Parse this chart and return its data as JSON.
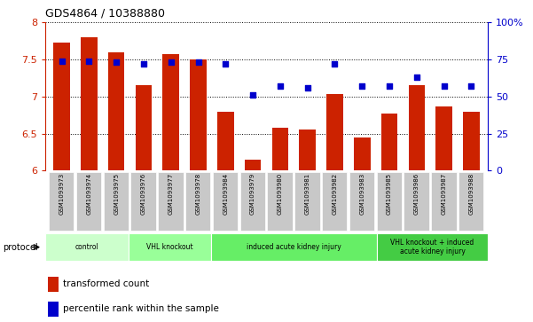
{
  "title": "GDS4864 / 10388880",
  "samples": [
    "GSM1093973",
    "GSM1093974",
    "GSM1093975",
    "GSM1093976",
    "GSM1093977",
    "GSM1093978",
    "GSM1093984",
    "GSM1093979",
    "GSM1093980",
    "GSM1093981",
    "GSM1093982",
    "GSM1093983",
    "GSM1093985",
    "GSM1093986",
    "GSM1093987",
    "GSM1093988"
  ],
  "bar_values": [
    7.73,
    7.8,
    7.6,
    7.15,
    7.57,
    7.5,
    6.8,
    6.15,
    6.58,
    6.56,
    7.03,
    6.45,
    6.77,
    7.15,
    6.87,
    6.8
  ],
  "dot_values": [
    74,
    74,
    73,
    72,
    73,
    73,
    72,
    51,
    57,
    56,
    72,
    57,
    57,
    63,
    57,
    57
  ],
  "bar_color": "#cc2200",
  "dot_color": "#0000cc",
  "ylim_left": [
    6.0,
    8.0
  ],
  "ylim_right": [
    0,
    100
  ],
  "yticks_left": [
    6.0,
    6.5,
    7.0,
    7.5,
    8.0
  ],
  "yticks_right": [
    0,
    25,
    50,
    75,
    100
  ],
  "groups": [
    {
      "label": "control",
      "start": 0,
      "end": 3,
      "color": "#ccffcc"
    },
    {
      "label": "VHL knockout",
      "start": 3,
      "end": 6,
      "color": "#99ff99"
    },
    {
      "label": "induced acute kidney injury",
      "start": 6,
      "end": 12,
      "color": "#66ee66"
    },
    {
      "label": "VHL knockout + induced\nacute kidney injury",
      "start": 12,
      "end": 16,
      "color": "#44cc44"
    }
  ],
  "legend_bar_label": "transformed count",
  "legend_dot_label": "percentile rank within the sample",
  "protocol_label": "protocol",
  "background_color": "#ffffff",
  "tick_label_bg": "#c8c8c8",
  "grid_color": "#000000",
  "left_axis_color": "#cc2200",
  "right_axis_color": "#0000cc",
  "left_labels": [
    "6",
    "6.5",
    "7",
    "7.5",
    "8"
  ],
  "right_labels": [
    "0",
    "25",
    "50",
    "75",
    "100%"
  ]
}
